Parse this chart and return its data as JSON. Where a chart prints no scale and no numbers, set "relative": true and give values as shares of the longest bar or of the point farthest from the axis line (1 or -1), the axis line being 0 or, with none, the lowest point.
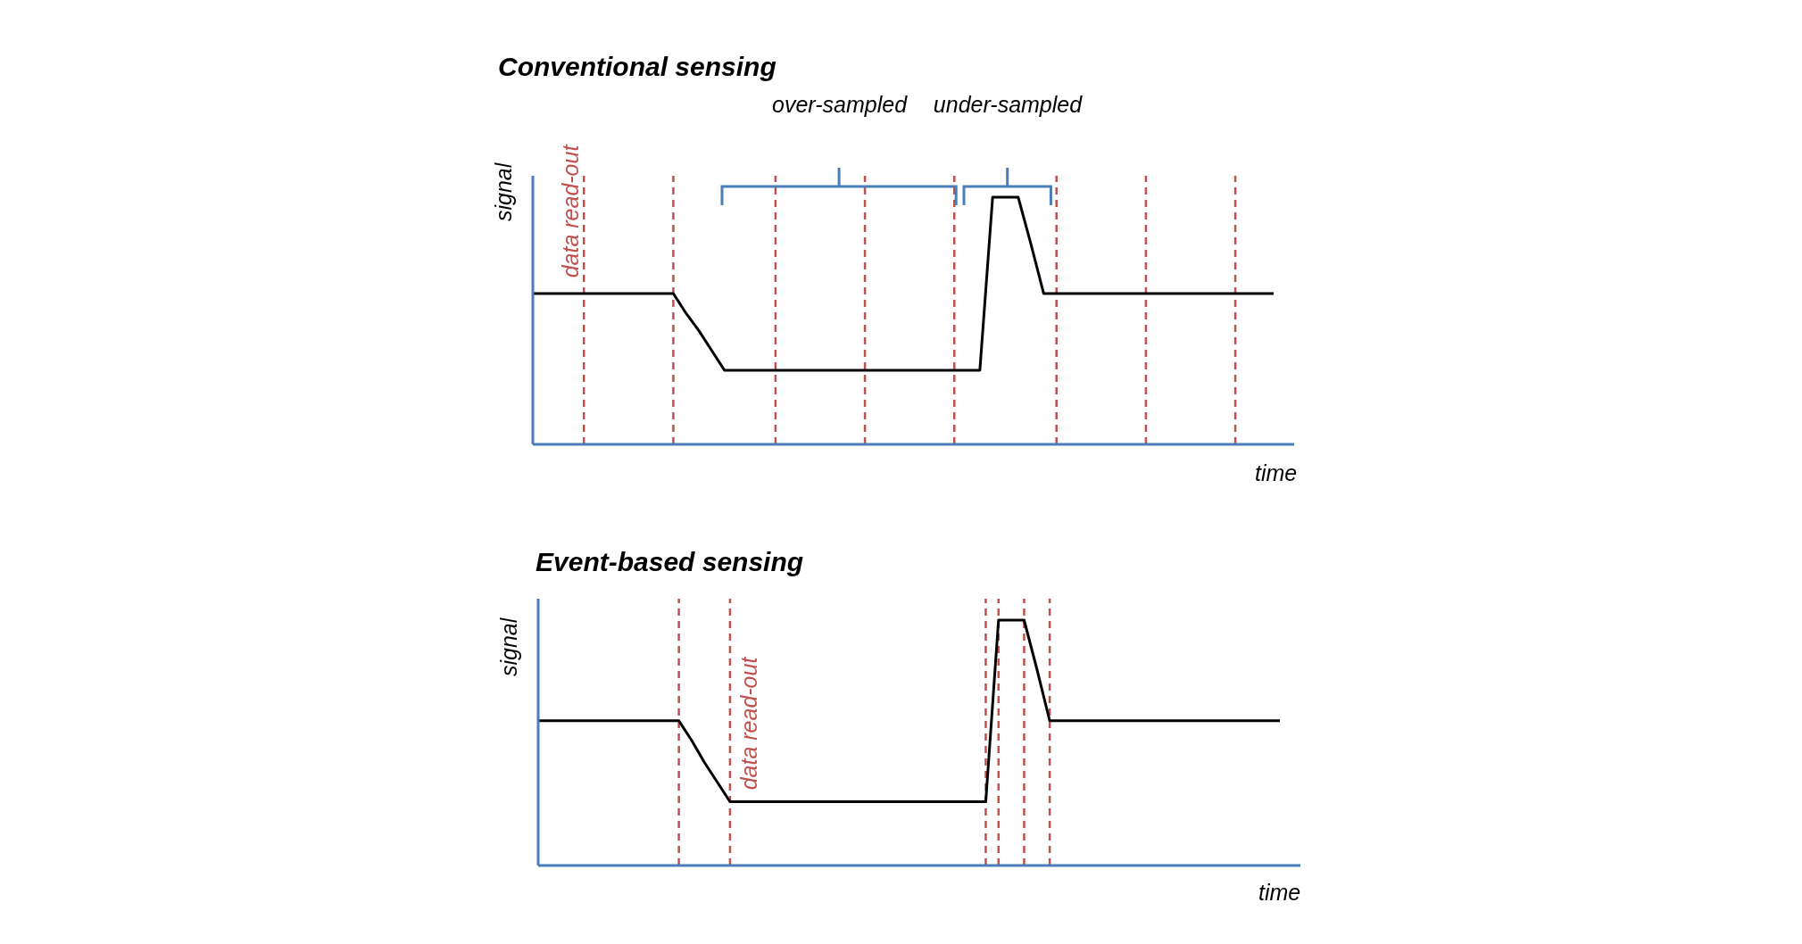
{
  "chart_data": [
    {
      "type": "line",
      "title": "Conventional sensing",
      "xlabel": "time",
      "ylabel": "signal",
      "relative": true,
      "tick_labels": false,
      "grid": "x",
      "legend": false,
      "marker": "none",
      "line_style": "solid",
      "categories": [
        null,
        null,
        null,
        null,
        null,
        null,
        null,
        null,
        null,
        null,
        null,
        null,
        null,
        null,
        null,
        null,
        null,
        null,
        null,
        null,
        null,
        null,
        null,
        null,
        null,
        null,
        null,
        null,
        null,
        null,
        null,
        null,
        null,
        null,
        null,
        null,
        null,
        null,
        null,
        null,
        null,
        null,
        null,
        null,
        null,
        null,
        null,
        null,
        null,
        null,
        null,
        null,
        null,
        null,
        null,
        null,
        null,
        null,
        null
      ],
      "series": [
        {
          "color": "#000000",
          "values": [
            0.61,
            0.61,
            0.61,
            0.61,
            0.61,
            0.61,
            0.61,
            0.61,
            0.61,
            0.61,
            0.61,
            0.61,
            0.53,
            0.46,
            0.38,
            0.3,
            0.3,
            0.3,
            0.3,
            0.3,
            0.3,
            0.3,
            0.3,
            0.3,
            0.3,
            0.3,
            0.3,
            0.3,
            0.3,
            0.3,
            0.3,
            0.3,
            0.3,
            0.3,
            0.3,
            0.3,
            1,
            1,
            1,
            0.81,
            0.61,
            0.61,
            0.61,
            0.61,
            0.61,
            0.61,
            0.61,
            0.61,
            0.61,
            0.61,
            0.61,
            0.61,
            0.61,
            0.61,
            0.61,
            0.61,
            0.61,
            0.61,
            0.61
          ]
        }
      ],
      "annotations": [
        "data read-out",
        "over-sampled",
        "under-sampled"
      ]
    },
    {
      "type": "line",
      "title": "Event-based sensing",
      "xlabel": "time",
      "ylabel": "signal",
      "relative": true,
      "tick_labels": false,
      "grid": "x",
      "legend": false,
      "marker": "none",
      "line_style": "solid",
      "categories": [
        null,
        null,
        null,
        null,
        null,
        null,
        null,
        null,
        null,
        null,
        null,
        null,
        null,
        null,
        null,
        null,
        null,
        null,
        null,
        null,
        null,
        null,
        null,
        null,
        null,
        null,
        null,
        null,
        null,
        null,
        null,
        null,
        null,
        null,
        null,
        null,
        null,
        null,
        null,
        null,
        null,
        null,
        null,
        null,
        null,
        null,
        null,
        null,
        null,
        null,
        null,
        null,
        null,
        null,
        null,
        null,
        null,
        null,
        null
      ],
      "series": [
        {
          "color": "#000000",
          "values": [
            0.59,
            0.59,
            0.59,
            0.59,
            0.59,
            0.59,
            0.59,
            0.59,
            0.59,
            0.59,
            0.59,
            0.59,
            0.51,
            0.42,
            0.34,
            0.26,
            0.26,
            0.26,
            0.26,
            0.26,
            0.26,
            0.26,
            0.26,
            0.26,
            0.26,
            0.26,
            0.26,
            0.26,
            0.26,
            0.26,
            0.26,
            0.26,
            0.26,
            0.26,
            0.26,
            0.26,
            1,
            1,
            1,
            0.8,
            0.59,
            0.59,
            0.59,
            0.59,
            0.59,
            0.59,
            0.59,
            0.59,
            0.59,
            0.59,
            0.59,
            0.59,
            0.59,
            0.59,
            0.59,
            0.59,
            0.59,
            0.59,
            0.59
          ]
        }
      ],
      "annotations": [
        "data read-out"
      ]
    }
  ]
}
